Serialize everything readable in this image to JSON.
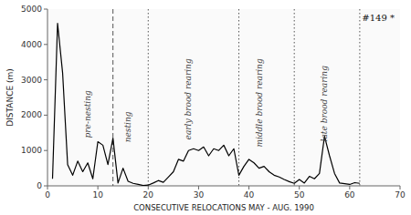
{
  "chart_data": {
    "type": "line",
    "title": "#149 *",
    "xlabel": "CONSECUTIVE RELOCATIONS MAY - AUG. 1990",
    "ylabel": "DISTANCE (m)",
    "xlim": [
      0,
      70
    ],
    "ylim": [
      0,
      5000
    ],
    "xticks": [
      0,
      10,
      20,
      30,
      40,
      50,
      60,
      70
    ],
    "yticks": [
      0,
      1000,
      2000,
      3000,
      4000,
      5000
    ],
    "color": "#000000",
    "grid": false,
    "x": [
      1,
      2,
      3,
      4,
      5,
      6,
      7,
      8,
      9,
      10,
      11,
      12,
      13,
      14,
      15,
      16,
      17,
      18,
      19,
      20,
      21,
      22,
      23,
      24,
      25,
      26,
      27,
      28,
      29,
      30,
      31,
      32,
      33,
      34,
      35,
      36,
      37,
      38,
      39,
      40,
      41,
      42,
      43,
      44,
      45,
      46,
      47,
      48,
      49,
      50,
      51,
      52,
      53,
      54,
      55,
      56,
      57,
      58,
      59,
      60,
      61,
      62
    ],
    "values": [
      200,
      4600,
      3200,
      600,
      300,
      700,
      400,
      650,
      200,
      1250,
      1150,
      600,
      1350,
      80,
      500,
      130,
      70,
      40,
      10,
      20,
      80,
      150,
      100,
      250,
      400,
      750,
      700,
      1000,
      1050,
      1000,
      1100,
      850,
      1050,
      1000,
      1150,
      850,
      1050,
      300,
      550,
      750,
      650,
      500,
      550,
      400,
      300,
      250,
      180,
      120,
      70,
      180,
      80,
      270,
      200,
      350,
      1400,
      850,
      350,
      80,
      60,
      40,
      90,
      70
    ],
    "vertical_lines": [
      {
        "x": 13,
        "line_style": "dashed"
      },
      {
        "x": 20,
        "line_style": "dotted"
      },
      {
        "x": 38,
        "line_style": "dotted"
      },
      {
        "x": 49,
        "line_style": "dotted"
      },
      {
        "x": 62,
        "line_style": "dotted"
      }
    ],
    "annotations": [
      {
        "text": "pre-nesting",
        "x": 8,
        "y": 2700
      },
      {
        "text": "nesting",
        "x": 16,
        "y": 2100
      },
      {
        "text": "early brood rearing",
        "x": 28,
        "y": 3600
      },
      {
        "text": "middle brood rearing",
        "x": 42,
        "y": 3600
      },
      {
        "text": "late brood rearing",
        "x": 55,
        "y": 3400
      }
    ]
  }
}
